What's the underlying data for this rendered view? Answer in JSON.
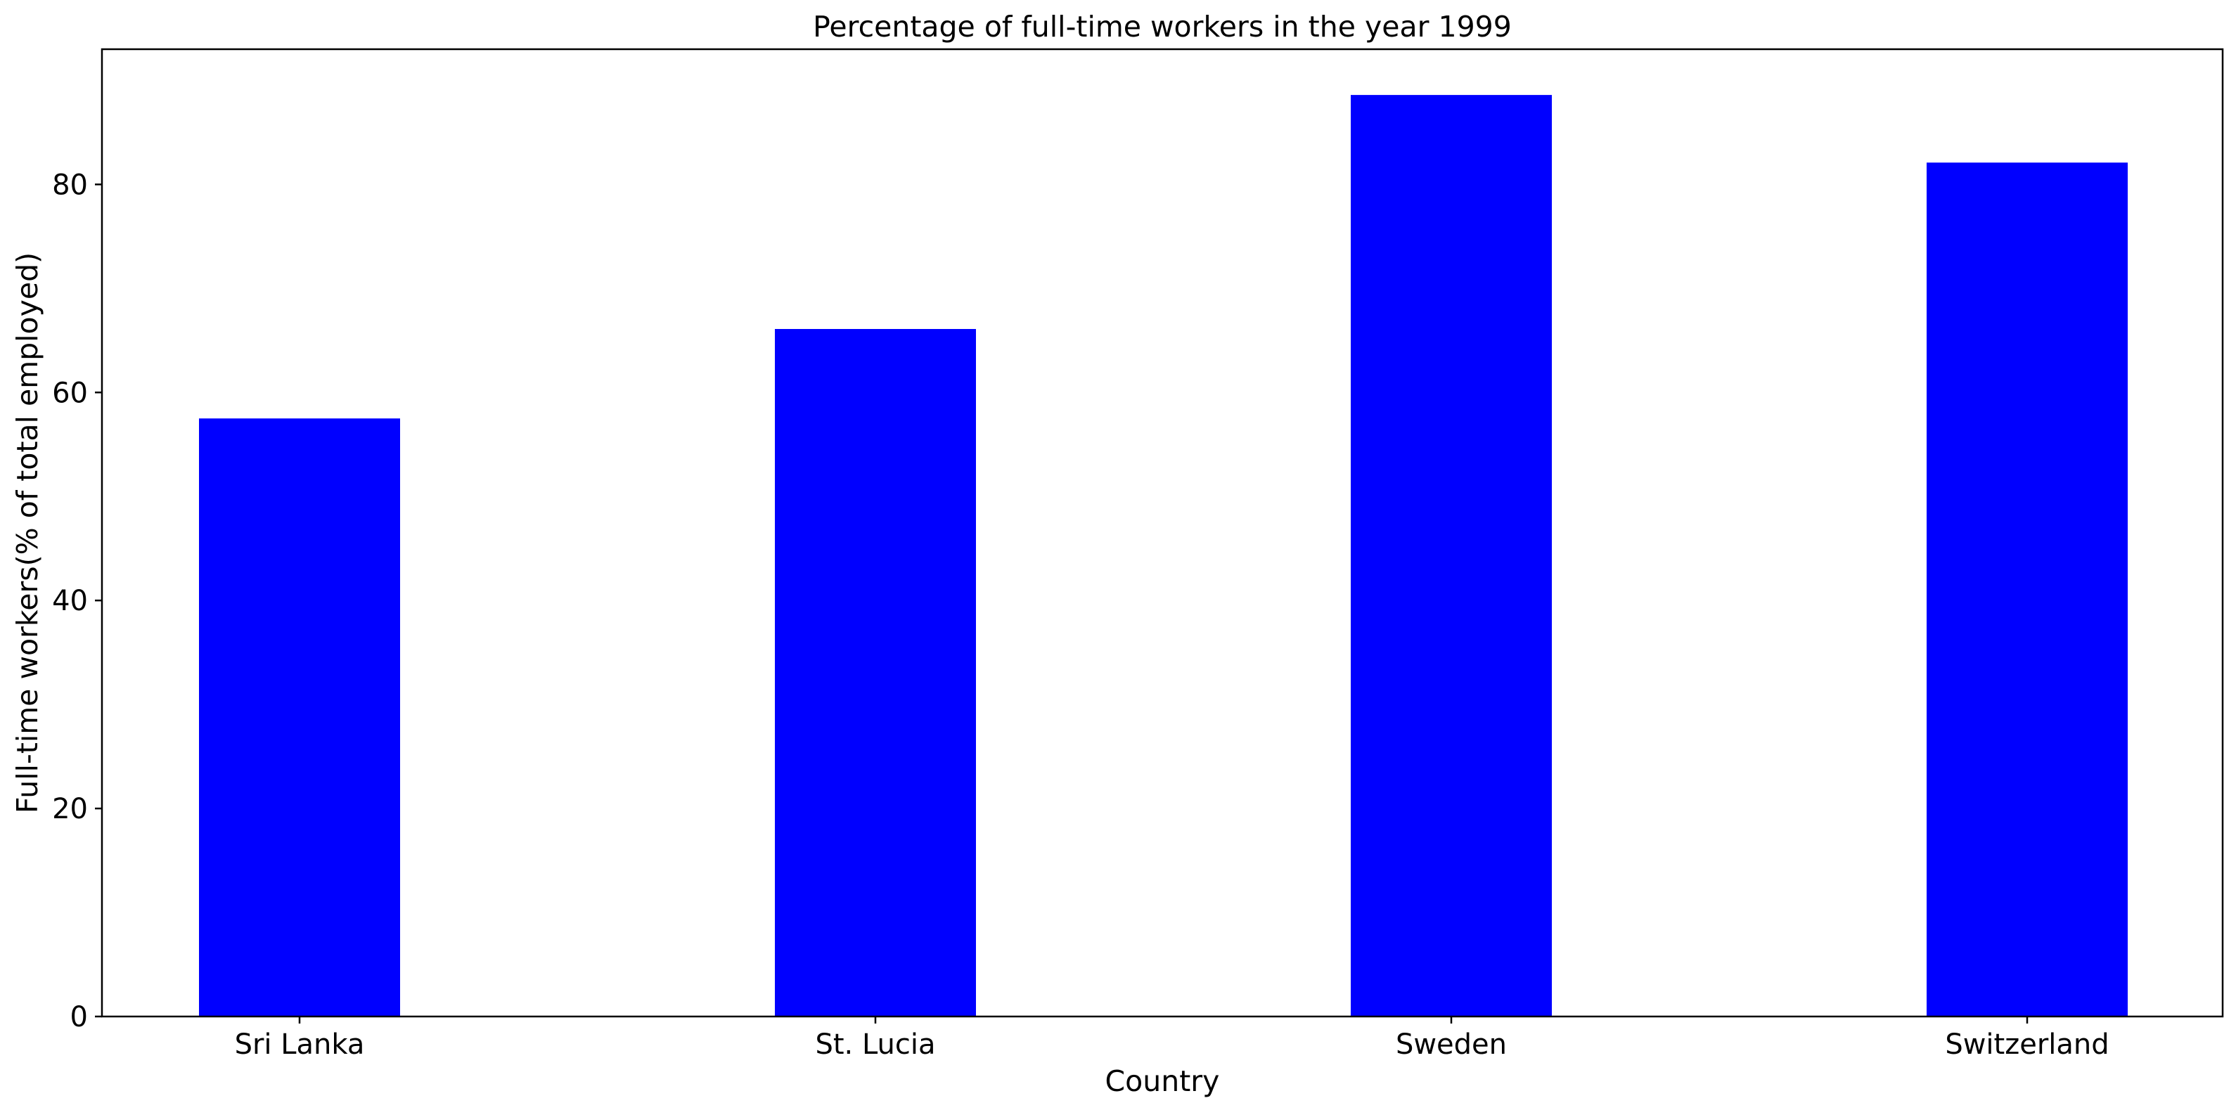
{
  "chart_data": {
    "type": "bar",
    "title": "Percentage of full-time workers in the year 1999",
    "xlabel": "Country",
    "ylabel": "Full-time workers(% of total employed)",
    "categories": [
      "Sri Lanka",
      "St. Lucia",
      "Sweden",
      "Switzerland"
    ],
    "values": [
      57.5,
      66.1,
      88.6,
      82.1
    ],
    "ylim": [
      0,
      93
    ],
    "yticks": [
      0,
      20,
      40,
      60,
      80
    ],
    "ytick_labels": [
      "0",
      "20",
      "40",
      "60",
      "80"
    ],
    "grid": false,
    "legend": "none",
    "bar_color": "#0000ff"
  }
}
